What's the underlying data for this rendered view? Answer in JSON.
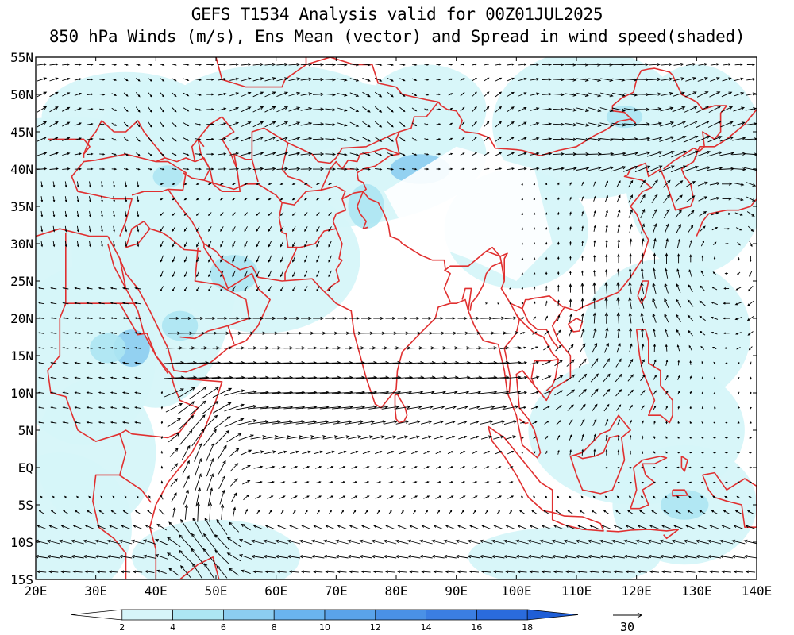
{
  "title": {
    "line1": "GEFS T1534 Analysis valid for 00Z01JUL2025",
    "line2": "850 hPa Winds (m/s), Ens Mean (vector) and Spread in wind speed(shaded)"
  },
  "map": {
    "lon_range": [
      20,
      140
    ],
    "lat_range": [
      -15,
      55
    ],
    "x_ticks": [
      20,
      30,
      40,
      50,
      60,
      70,
      80,
      90,
      100,
      110,
      120,
      130,
      140
    ],
    "x_tick_labels": [
      "20E",
      "30E",
      "40E",
      "50E",
      "60E",
      "70E",
      "80E",
      "90E",
      "100E",
      "110E",
      "120E",
      "130E",
      "140E"
    ],
    "y_ticks": [
      55,
      50,
      45,
      40,
      35,
      30,
      25,
      20,
      15,
      10,
      5,
      0,
      -5,
      -10,
      -15
    ],
    "y_tick_labels": [
      "55N",
      "50N",
      "45N",
      "40N",
      "35N",
      "30N",
      "25N",
      "20N",
      "15N",
      "10N",
      "5N",
      "EQ",
      "5S",
      "10S",
      "15S"
    ],
    "coastline_color": "#e03030",
    "vector_color": "#000000"
  },
  "colorbar": {
    "levels": [
      "2",
      "4",
      "6",
      "8",
      "10",
      "12",
      "14",
      "16",
      "18"
    ],
    "colors": [
      "#ffffff",
      "#d6f5f9",
      "#ade6f2",
      "#8ccdf0",
      "#6ab4ee",
      "#5aa3ea",
      "#4a91e6",
      "#3b7ee2",
      "#2a6bdd",
      "#1f5ed6"
    ]
  },
  "reference_vector": {
    "label": "30",
    "value": 30
  }
}
